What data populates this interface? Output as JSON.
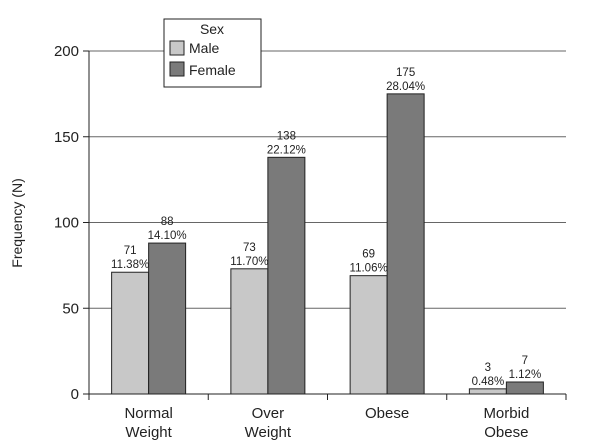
{
  "chart_data": {
    "type": "bar",
    "categories": [
      [
        "Normal",
        "Weight"
      ],
      [
        "Over",
        "Weight"
      ],
      [
        "Obese"
      ],
      [
        "Morbid",
        "Obese"
      ]
    ],
    "series": [
      {
        "name": "Male",
        "color": "#c8c8c8",
        "values": [
          71,
          73,
          69,
          3
        ],
        "labels": [
          "11.38%",
          "11.70%",
          "11.06%",
          "0.48%"
        ]
      },
      {
        "name": "Female",
        "color": "#7a7a7a",
        "values": [
          88,
          138,
          175,
          7
        ],
        "labels": [
          "14.10%",
          "22.12%",
          "28.04%",
          "1.12%"
        ]
      }
    ],
    "ylabel": "Frequency (N)",
    "ylim": [
      0,
      200
    ],
    "yticks": [
      0,
      50,
      100,
      150,
      200
    ],
    "legend": {
      "title": "Sex",
      "position": "top-left"
    },
    "grid": true
  }
}
